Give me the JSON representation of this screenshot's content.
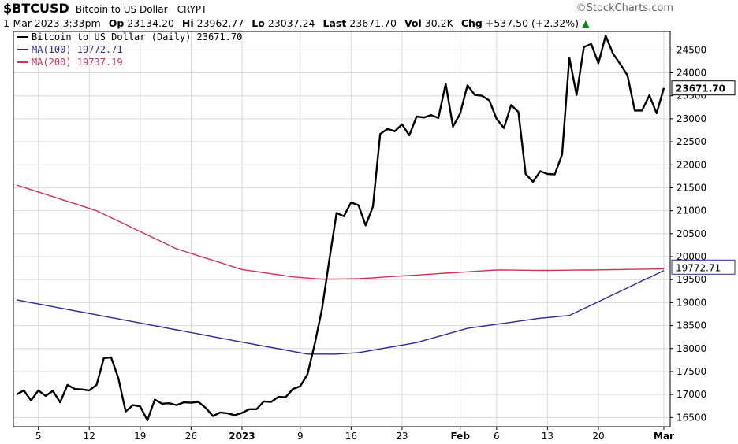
{
  "header": {
    "symbol": "$BTCUSD",
    "description": "Bitcoin to US Dollar",
    "exchange": "CRYPT",
    "brand": "©StockCharts.com",
    "datetime": "1-Mar-2023 3:33pm",
    "op_label": "Op",
    "op_value": "23134.20",
    "hi_label": "Hi",
    "hi_value": "23962.77",
    "lo_label": "Lo",
    "lo_value": "23037.24",
    "last_label": "Last",
    "last_value": "23671.70",
    "vol_label": "Vol",
    "vol_value": "30.2K",
    "chg_label": "Chg",
    "chg_value": "+537.50 (+2.32%)",
    "chg_arrow": "▲"
  },
  "chart_data": {
    "type": "line",
    "yticks": [
      16500,
      17000,
      17500,
      18000,
      18500,
      19000,
      19500,
      20000,
      20500,
      21000,
      21500,
      22000,
      22500,
      23000,
      23500,
      24000,
      24500
    ],
    "ylim": [
      16300,
      24900
    ],
    "xticks": [
      {
        "label": "5",
        "index": 3,
        "bold": false
      },
      {
        "label": "12",
        "index": 10,
        "bold": false
      },
      {
        "label": "19",
        "index": 17,
        "bold": false
      },
      {
        "label": "26",
        "index": 24,
        "bold": false
      },
      {
        "label": "2023",
        "index": 31,
        "bold": true
      },
      {
        "label": "9",
        "index": 39,
        "bold": false
      },
      {
        "label": "16",
        "index": 46,
        "bold": false
      },
      {
        "label": "23",
        "index": 53,
        "bold": false
      },
      {
        "label": "Feb",
        "index": 61,
        "bold": true
      },
      {
        "label": "6",
        "index": 66,
        "bold": false
      },
      {
        "label": "13",
        "index": 73,
        "bold": false
      },
      {
        "label": "20",
        "index": 80,
        "bold": false
      },
      {
        "label": "Mar",
        "index": 89,
        "bold": true
      }
    ],
    "x_count": 90,
    "series": [
      {
        "name": "Bitcoin to US Dollar (Daily)",
        "legend": "Bitcoin to US Dollar (Daily) 23671.70",
        "color": "#000000",
        "values": [
          17000,
          17090,
          16870,
          17090,
          16970,
          17080,
          16830,
          17210,
          17120,
          17110,
          17090,
          17210,
          17790,
          17810,
          17360,
          16630,
          16770,
          16740,
          16440,
          16890,
          16800,
          16810,
          16770,
          16830,
          16820,
          16840,
          16710,
          16530,
          16610,
          16590,
          16550,
          16600,
          16680,
          16680,
          16850,
          16840,
          16950,
          16940,
          17120,
          17180,
          17440,
          18100,
          18860,
          19930,
          20950,
          20880,
          21180,
          21120,
          20680,
          21090,
          22670,
          22780,
          22730,
          22880,
          22640,
          23050,
          23030,
          23080,
          23020,
          23760,
          22830,
          23120,
          23730,
          23520,
          23500,
          23400,
          23000,
          22800,
          23300,
          23150,
          21800,
          21630,
          21860,
          21800,
          21790,
          22220,
          24330,
          23520,
          24560,
          24630,
          24210,
          24810,
          24420,
          24190,
          23940,
          23180,
          23180,
          23510,
          23120,
          23671.7
        ]
      },
      {
        "name": "MA(100)",
        "legend": "MA(100) 19772.71",
        "color": "#2a2a9a",
        "start": 19060,
        "end": 19772.71,
        "anchors": [
          [
            0,
            19060
          ],
          [
            31,
            18140
          ],
          [
            40,
            17880
          ],
          [
            44,
            17880
          ],
          [
            47,
            17910
          ],
          [
            55,
            18130
          ],
          [
            62,
            18440
          ],
          [
            72,
            18660
          ],
          [
            76,
            18720
          ],
          [
            90,
            19772.71
          ]
        ]
      },
      {
        "name": "MA(200)",
        "legend": "MA(200) 19737.19",
        "color": "#cc3355",
        "start": 21560,
        "end": 19737.19,
        "anchors": [
          [
            0,
            21560
          ],
          [
            11,
            21000
          ],
          [
            22,
            20170
          ],
          [
            31,
            19720
          ],
          [
            38,
            19560
          ],
          [
            42,
            19510
          ],
          [
            47,
            19520
          ],
          [
            55,
            19600
          ],
          [
            66,
            19710
          ],
          [
            73,
            19700
          ],
          [
            79,
            19710
          ],
          [
            90,
            19737.19
          ]
        ]
      }
    ],
    "last_labels": [
      {
        "text": "23671.70",
        "value": 23671.7,
        "color": "#000000"
      },
      {
        "text": "19772.71",
        "value": 19772.71,
        "color": "#2a2a9a"
      }
    ]
  }
}
